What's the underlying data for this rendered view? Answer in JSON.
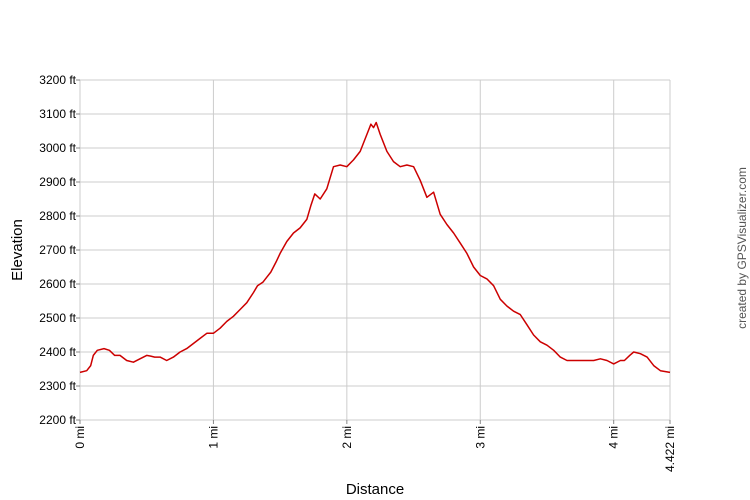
{
  "chart_data": {
    "type": "line",
    "title": "",
    "xlabel": "Distance",
    "ylabel": "Elevation",
    "xlim": [
      0,
      4.422
    ],
    "ylim": [
      2200,
      3200
    ],
    "grid": true,
    "line_color": "#cc0000",
    "grid_color": "#cccccc",
    "y_ticks": [
      {
        "value": 2200,
        "label": "2200 ft"
      },
      {
        "value": 2300,
        "label": "2300 ft"
      },
      {
        "value": 2400,
        "label": "2400 ft"
      },
      {
        "value": 2500,
        "label": "2500 ft"
      },
      {
        "value": 2600,
        "label": "2600 ft"
      },
      {
        "value": 2700,
        "label": "2700 ft"
      },
      {
        "value": 2800,
        "label": "2800 ft"
      },
      {
        "value": 2900,
        "label": "2900 ft"
      },
      {
        "value": 3000,
        "label": "3000 ft"
      },
      {
        "value": 3100,
        "label": "3100 ft"
      },
      {
        "value": 3200,
        "label": "3200 ft"
      }
    ],
    "x_ticks": [
      {
        "value": 0,
        "label": "0 mi"
      },
      {
        "value": 1,
        "label": "1 mi"
      },
      {
        "value": 2,
        "label": "2 mi"
      },
      {
        "value": 3,
        "label": "3 mi"
      },
      {
        "value": 4,
        "label": "4 mi"
      },
      {
        "value": 4.422,
        "label": "4.422 mi"
      }
    ],
    "series": [
      {
        "x": [
          0,
          0.05,
          0.08,
          0.1,
          0.13,
          0.18,
          0.22,
          0.26,
          0.3,
          0.35,
          0.4,
          0.45,
          0.5,
          0.53,
          0.56,
          0.6,
          0.65,
          0.7,
          0.75,
          0.8,
          0.85,
          0.9,
          0.95,
          1.0,
          1.05,
          1.1,
          1.15,
          1.2,
          1.25,
          1.3,
          1.33,
          1.37,
          1.4,
          1.43,
          1.47,
          1.5,
          1.55,
          1.6,
          1.65,
          1.7,
          1.73,
          1.76,
          1.8,
          1.85,
          1.9,
          1.95,
          2.0,
          2.05,
          2.1,
          2.15,
          2.18,
          2.2,
          2.22,
          2.25,
          2.3,
          2.35,
          2.4,
          2.45,
          2.5,
          2.55,
          2.6,
          2.65,
          2.7,
          2.75,
          2.8,
          2.85,
          2.9,
          2.95,
          3.0,
          3.05,
          3.1,
          3.15,
          3.2,
          3.25,
          3.3,
          3.35,
          3.4,
          3.45,
          3.5,
          3.55,
          3.6,
          3.65,
          3.7,
          3.75,
          3.8,
          3.85,
          3.9,
          3.95,
          4.0,
          4.05,
          4.08,
          4.12,
          4.15,
          4.2,
          4.25,
          4.3,
          4.35,
          4.422
        ],
        "y": [
          2340,
          2345,
          2360,
          2390,
          2405,
          2410,
          2405,
          2390,
          2390,
          2375,
          2370,
          2380,
          2390,
          2388,
          2385,
          2385,
          2375,
          2385,
          2400,
          2410,
          2425,
          2440,
          2455,
          2455,
          2470,
          2490,
          2505,
          2525,
          2545,
          2575,
          2595,
          2605,
          2620,
          2635,
          2665,
          2690,
          2725,
          2750,
          2765,
          2790,
          2830,
          2865,
          2850,
          2880,
          2945,
          2950,
          2945,
          2965,
          2990,
          3040,
          3070,
          3060,
          3075,
          3040,
          2990,
          2960,
          2945,
          2950,
          2945,
          2905,
          2855,
          2870,
          2805,
          2775,
          2750,
          2720,
          2690,
          2650,
          2625,
          2615,
          2595,
          2555,
          2535,
          2520,
          2510,
          2480,
          2450,
          2430,
          2420,
          2405,
          2385,
          2375,
          2375,
          2375,
          2375,
          2375,
          2380,
          2375,
          2365,
          2375,
          2375,
          2390,
          2400,
          2395,
          2385,
          2360,
          2345,
          2340
        ]
      }
    ]
  },
  "credit": "created by GPSVisualizer.com"
}
